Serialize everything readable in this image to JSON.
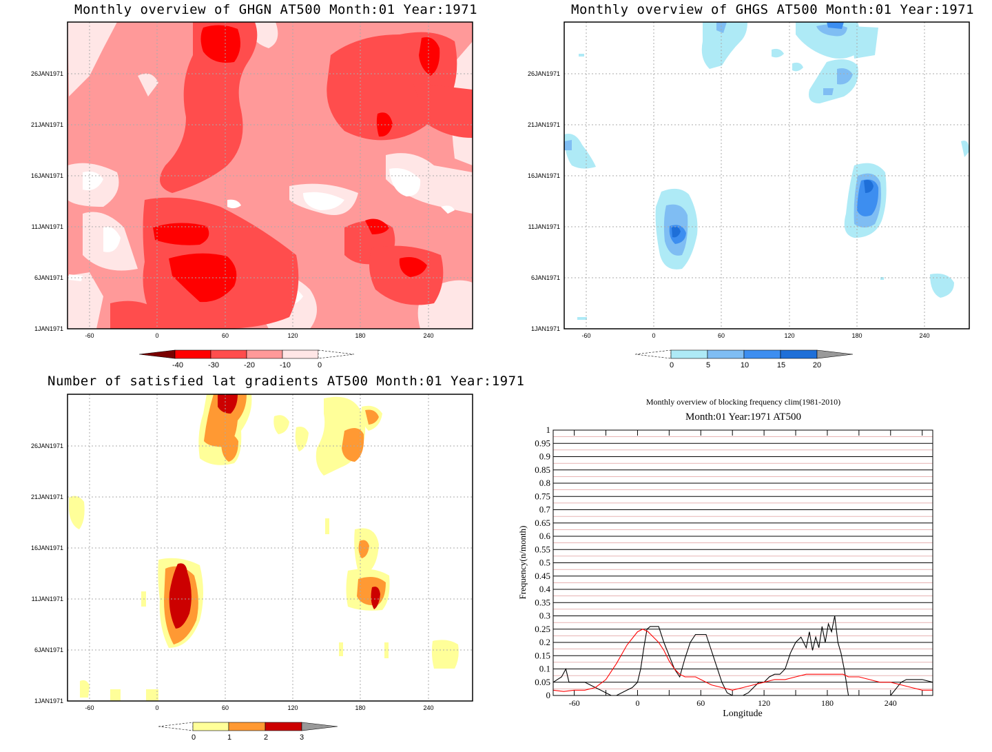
{
  "panels": {
    "ghgn": {
      "title": "Monthly overview of GHGN AT500 Month:01 Year:1971",
      "xticks": [
        "-60",
        "0",
        "60",
        "120",
        "180",
        "240"
      ],
      "yticks": [
        "1JAN1971",
        "6JAN1971",
        "11JAN1971",
        "16JAN1971",
        "21JAN1971",
        "26JAN1971"
      ],
      "colorbar": {
        "labels": [
          "-40",
          "-30",
          "-20",
          "-10",
          "0"
        ],
        "colors": [
          "#7a0000",
          "#ff0000",
          "#ff4d4d",
          "#ff9999",
          "#ffe6e6"
        ]
      }
    },
    "ghgs": {
      "title": "Monthly overview of GHGS AT500 Month:01 Year:1971",
      "xticks": [
        "-60",
        "0",
        "60",
        "120",
        "180",
        "240"
      ],
      "yticks": [
        "1JAN1971",
        "6JAN1971",
        "11JAN1971",
        "16JAN1971",
        "21JAN1971",
        "26JAN1971"
      ],
      "colorbar": {
        "labels": [
          "0",
          "5",
          "10",
          "15",
          "20"
        ],
        "colors": [
          "#aeeaf6",
          "#7fbdf3",
          "#3d8ef0",
          "#1e6fd8",
          "#999999"
        ]
      }
    },
    "grad": {
      "title": "Number of satisfied lat gradients AT500 Month:01 Year:1971",
      "xticks": [
        "-60",
        "0",
        "60",
        "120",
        "180",
        "240"
      ],
      "yticks": [
        "1JAN1971",
        "6JAN1971",
        "11JAN1971",
        "16JAN1971",
        "21JAN1971",
        "26JAN1971"
      ],
      "colorbar": {
        "labels": [
          "0",
          "1",
          "2",
          "3"
        ],
        "colors": [
          "#ffff99",
          "#ff9933",
          "#cc0000",
          "#999999"
        ]
      }
    },
    "freq": {
      "title1": "Monthly overview of blocking frequency clim(1981-2010)",
      "title2": "Month:01 Year:1971  AT500",
      "ylabel": "Frequency(n/month)",
      "xlabel": "Longitude",
      "yticks": [
        "0",
        "0.05",
        "0.1",
        "0.15",
        "0.2",
        "0.25",
        "0.3",
        "0.35",
        "0.4",
        "0.45",
        "0.5",
        "0.55",
        "0.6",
        "0.65",
        "0.7",
        "0.75",
        "0.8",
        "0.85",
        "0.9",
        "0.95",
        "1"
      ],
      "xticks": [
        "-60",
        "0",
        "60",
        "120",
        "180",
        "240"
      ]
    }
  },
  "chart_data": [
    {
      "type": "heatmap",
      "title": "Monthly overview of GHGN AT500 Month:01 Year:1971",
      "x_range": [
        -75,
        285
      ],
      "y_range": [
        "1JAN1971",
        "31JAN1971"
      ],
      "levels": [
        -40,
        -30,
        -20,
        -10,
        0
      ]
    },
    {
      "type": "heatmap",
      "title": "Monthly overview of GHGS AT500 Month:01 Year:1971",
      "x_range": [
        -75,
        285
      ],
      "y_range": [
        "1JAN1971",
        "31JAN1971"
      ],
      "levels": [
        0,
        5,
        10,
        15,
        20
      ]
    },
    {
      "type": "heatmap",
      "title": "Number of satisfied lat gradients AT500 Month:01 Year:1971",
      "x_range": [
        -75,
        285
      ],
      "y_range": [
        "1JAN1971",
        "31JAN1971"
      ],
      "levels": [
        0,
        1,
        2,
        3
      ]
    },
    {
      "type": "line",
      "title": "Monthly overview of blocking frequency clim(1981-2010)",
      "subtitle": "Month:01 Year:1971  AT500",
      "xlabel": "Longitude",
      "ylabel": "Frequency(n/month)",
      "xlim": [
        -80,
        280
      ],
      "ylim": [
        0,
        1
      ],
      "series": [
        {
          "color": "#000000",
          "x": [
            -80,
            -72,
            -68,
            -65,
            -62,
            -50,
            -45,
            -40,
            -35,
            -30,
            -25,
            -20,
            -15,
            -10,
            -5,
            0,
            3,
            6,
            9,
            12,
            15,
            20,
            25,
            30,
            35,
            40,
            45,
            50,
            55,
            60,
            65,
            70,
            75,
            80,
            85,
            90,
            95,
            100,
            105,
            110,
            115,
            120,
            125,
            130,
            135,
            140,
            145,
            150,
            155,
            160,
            163,
            166,
            169,
            172,
            175,
            178,
            181,
            184,
            187,
            190,
            193,
            196,
            200,
            205,
            210,
            220,
            230,
            240,
            250,
            255,
            260,
            265,
            270,
            280
          ],
          "y": [
            0.05,
            0.07,
            0.1,
            0.05,
            0.05,
            0.05,
            0.04,
            0.03,
            0.02,
            0.01,
            0,
            0,
            0.01,
            0.02,
            0.03,
            0.05,
            0.1,
            0.18,
            0.25,
            0.26,
            0.26,
            0.26,
            0.2,
            0.15,
            0.1,
            0.07,
            0.14,
            0.2,
            0.23,
            0.23,
            0.23,
            0.17,
            0.11,
            0.05,
            0.01,
            0,
            0,
            0,
            0.01,
            0.03,
            0.05,
            0.05,
            0.07,
            0.08,
            0.08,
            0.1,
            0.16,
            0.2,
            0.22,
            0.18,
            0.24,
            0.17,
            0.22,
            0.18,
            0.26,
            0.2,
            0.27,
            0.24,
            0.3,
            0.2,
            0.16,
            0.1,
            0,
            0,
            0,
            0,
            0,
            0,
            0.05,
            0.06,
            0.06,
            0.06,
            0.06,
            0.05
          ]
        },
        {
          "color": "#ff0000",
          "x": [
            -80,
            -70,
            -60,
            -50,
            -40,
            -30,
            -20,
            -10,
            0,
            5,
            10,
            15,
            20,
            25,
            30,
            35,
            40,
            45,
            50,
            55,
            60,
            70,
            80,
            90,
            100,
            110,
            120,
            130,
            140,
            150,
            160,
            170,
            180,
            190,
            195,
            200,
            210,
            220,
            230,
            240,
            250,
            260,
            270,
            280
          ],
          "y": [
            0.02,
            0.015,
            0.02,
            0.02,
            0.03,
            0.06,
            0.12,
            0.19,
            0.24,
            0.25,
            0.24,
            0.22,
            0.2,
            0.17,
            0.13,
            0.1,
            0.08,
            0.07,
            0.07,
            0.07,
            0.06,
            0.04,
            0.03,
            0.02,
            0.03,
            0.04,
            0.05,
            0.06,
            0.06,
            0.07,
            0.08,
            0.08,
            0.08,
            0.08,
            0.08,
            0.07,
            0.07,
            0.06,
            0.05,
            0.05,
            0.04,
            0.03,
            0.02,
            0.02
          ]
        }
      ]
    }
  ]
}
